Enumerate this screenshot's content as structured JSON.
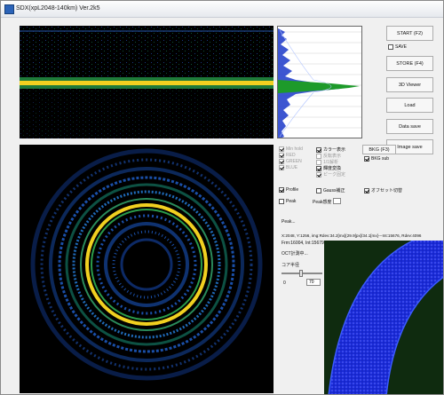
{
  "window": {
    "title": "SDX(xpL2048-140km) Ver.2k5"
  },
  "buttons": {
    "start": "START (F2)",
    "store": "STORE (F4)",
    "viewer": "3D Viewer",
    "load": "Load",
    "data_save": "Data save",
    "image_save": "Image save",
    "bkg": "BKG (F3)"
  },
  "options": {
    "save": "SAVE",
    "min_hold": "Min hold",
    "red": "RED",
    "green": "GREEN",
    "blue": "BLUE",
    "color_display": "カラー表示",
    "invert_display": "反転表示",
    "rate": "1/1解析",
    "luminance": "輝度変換",
    "peak_fix": "ピーク固定",
    "bkg_sub": "BKG sub",
    "profile": "Profile",
    "gauss": "Gauss補正",
    "offset": "オフセット切替",
    "peak": "Peak",
    "peak_sens_label": "Peak感度"
  },
  "info": {
    "peak_text": "Peak...",
    "coords": "X:2048, Y:1256, img:Rdev:34.2[mx](29.9[px]/34.1[mx]---Int:15676, Rdev:4096",
    "frame": "Frm:16004, Int:15679",
    "status": "OCT計測中...",
    "slider_label": "コア半径",
    "slider_min": "0",
    "slider_val": "70"
  },
  "colors": {
    "ring": "#f1d020",
    "profile_fill": "#1d9a2a",
    "speckle": "#1a4fd0"
  }
}
